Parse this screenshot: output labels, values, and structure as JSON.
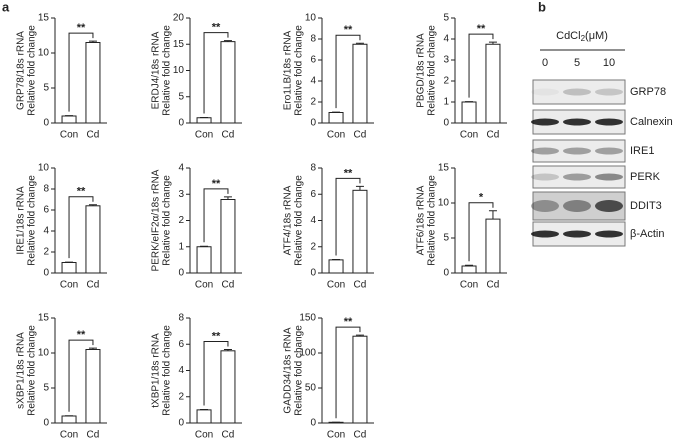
{
  "panel_labels": [
    "a",
    "b"
  ],
  "chart_data": [
    {
      "type": "bar",
      "ylabel": "GRP78/18s rRNA",
      "ylabel2": "Relative fold change",
      "categories": [
        "Con",
        "Cd"
      ],
      "values": [
        1,
        11.5
      ],
      "errors": [
        0.05,
        0.2
      ],
      "annotation": "**",
      "ylim": [
        0,
        15
      ],
      "yticks": [
        0,
        5,
        10,
        15
      ],
      "color": "#ffffff"
    },
    {
      "type": "bar",
      "ylabel": "ERDJ4/18s rRNA",
      "ylabel2": "Relative fold change",
      "categories": [
        "Con",
        "Cd"
      ],
      "values": [
        1,
        15.5
      ],
      "errors": [
        0.05,
        0.2
      ],
      "annotation": "**",
      "ylim": [
        0,
        20
      ],
      "yticks": [
        0,
        5,
        10,
        15,
        20
      ],
      "color": "#ffffff"
    },
    {
      "type": "bar",
      "ylabel": "Ero1LB/18s rRNA",
      "ylabel2": "Relative fold change",
      "categories": [
        "Con",
        "Cd"
      ],
      "values": [
        1,
        7.5
      ],
      "errors": [
        0.03,
        0.1
      ],
      "annotation": "**",
      "ylim": [
        0,
        10
      ],
      "yticks": [
        0,
        2,
        4,
        6,
        8,
        10
      ],
      "color": "#ffffff"
    },
    {
      "type": "bar",
      "ylabel": "PBGD/18s rRNA",
      "ylabel2": "Relative fold change",
      "categories": [
        "Con",
        "Cd"
      ],
      "values": [
        1,
        3.75
      ],
      "errors": [
        0.02,
        0.1
      ],
      "annotation": "**",
      "ylim": [
        0,
        5
      ],
      "yticks": [
        0,
        1,
        2,
        3,
        4,
        5
      ],
      "color": "#ffffff"
    },
    {
      "type": "bar",
      "ylabel": "IRE1/18s rRNA",
      "ylabel2": "Relative fold change",
      "categories": [
        "Con",
        "Cd"
      ],
      "values": [
        1,
        6.4
      ],
      "errors": [
        0.03,
        0.1
      ],
      "annotation": "**",
      "ylim": [
        0,
        10
      ],
      "yticks": [
        0,
        2,
        4,
        6,
        8,
        10
      ],
      "color": "#ffffff"
    },
    {
      "type": "bar",
      "ylabel": "PERK/eIF2α/18s rRNA",
      "ylabel2": "Relative fold change",
      "categories": [
        "Con",
        "Cd"
      ],
      "values": [
        1,
        2.8
      ],
      "errors": [
        0.02,
        0.1
      ],
      "annotation": "**",
      "ylim": [
        0,
        4
      ],
      "yticks": [
        0,
        1,
        2,
        3,
        4
      ],
      "color": "#ffffff"
    },
    {
      "type": "bar",
      "ylabel": "ATF4/18s rRNA",
      "ylabel2": "Relative fold change",
      "categories": [
        "Con",
        "Cd"
      ],
      "values": [
        1,
        6.3
      ],
      "errors": [
        0.03,
        0.3
      ],
      "annotation": "**",
      "ylim": [
        0,
        8
      ],
      "yticks": [
        0,
        2,
        4,
        6,
        8
      ],
      "color": "#ffffff"
    },
    {
      "type": "bar",
      "ylabel": "ATF6/18s rRNA",
      "ylabel2": "Relative fold change",
      "categories": [
        "Con",
        "Cd"
      ],
      "values": [
        1,
        7.7
      ],
      "errors": [
        0.1,
        1.2
      ],
      "annotation": "*",
      "ylim": [
        0,
        15
      ],
      "yticks": [
        0,
        5,
        10,
        15
      ],
      "color": "#ffffff"
    },
    {
      "type": "bar",
      "ylabel": "sXBP1/18s rRNA",
      "ylabel2": "Relative fold change",
      "categories": [
        "Con",
        "Cd"
      ],
      "values": [
        1,
        10.5
      ],
      "errors": [
        0.03,
        0.2
      ],
      "annotation": "**",
      "ylim": [
        0,
        15
      ],
      "yticks": [
        0,
        5,
        10,
        15
      ],
      "color": "#ffffff"
    },
    {
      "type": "bar",
      "ylabel": "tXBP1/18s rRNA",
      "ylabel2": "Relative fold change",
      "categories": [
        "Con",
        "Cd"
      ],
      "values": [
        1,
        5.5
      ],
      "errors": [
        0.03,
        0.1
      ],
      "annotation": "**",
      "ylim": [
        0,
        8
      ],
      "yticks": [
        0,
        2,
        4,
        6,
        8
      ],
      "color": "#ffffff"
    },
    {
      "type": "bar",
      "ylabel": "GADD34/18s rRNA",
      "ylabel2": "Relative fold change",
      "categories": [
        "Con",
        "Cd"
      ],
      "values": [
        1,
        124
      ],
      "errors": [
        0.1,
        1.5
      ],
      "annotation": "**",
      "ylim": [
        0,
        150
      ],
      "yticks": [
        0,
        50,
        100,
        150
      ],
      "color": "#ffffff"
    }
  ],
  "blot": {
    "treatment": "CdCl",
    "subscript": "2",
    "unit": "(μM)",
    "lanes": [
      "0",
      "5",
      "10"
    ],
    "rows": [
      "GRP78",
      "Calnexin",
      "IRE1",
      "PERK",
      "DDIT3",
      "β-Actin"
    ]
  }
}
